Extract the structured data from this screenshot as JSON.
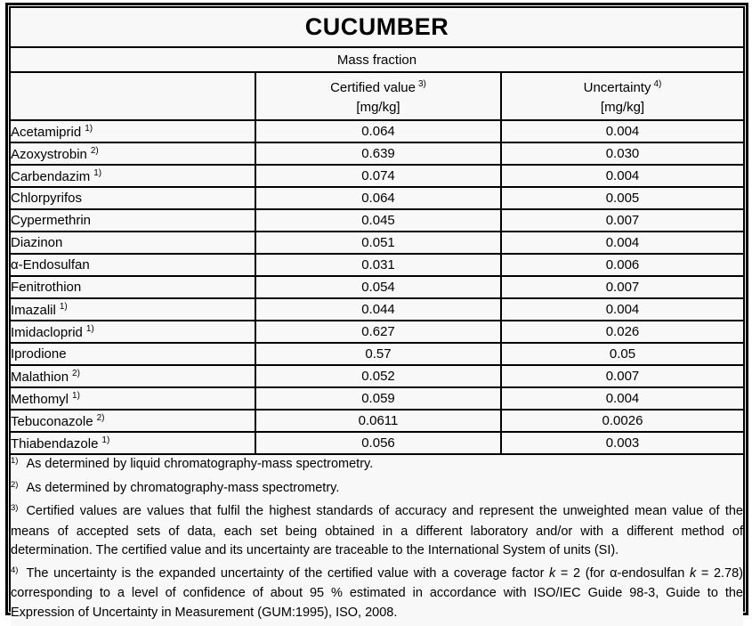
{
  "table": {
    "title": "CUCUMBER",
    "subtitle": "Mass fraction",
    "columns": {
      "analyte": {
        "label": ""
      },
      "certified": {
        "label": "Certified value",
        "sup": "3)",
        "unit": "[mg/kg]"
      },
      "uncertainty": {
        "label": "Uncertainty",
        "sup": "4)",
        "unit": "[mg/kg]"
      }
    },
    "rows": [
      {
        "name": "Acetamiprid",
        "sup": "1)",
        "value": "0.064",
        "uncertainty": "0.004"
      },
      {
        "name": "Azoxystrobin",
        "sup": "2)",
        "value": "0.639",
        "uncertainty": "0.030"
      },
      {
        "name": "Carbendazim",
        "sup": "1)",
        "value": "0.074",
        "uncertainty": "0.004"
      },
      {
        "name": "Chlorpyrifos",
        "sup": "",
        "value": "0.064",
        "uncertainty": "0.005"
      },
      {
        "name": "Cypermethrin",
        "sup": "",
        "value": "0.045",
        "uncertainty": "0.007"
      },
      {
        "name": "Diazinon",
        "sup": "",
        "value": "0.051",
        "uncertainty": "0.004"
      },
      {
        "name": "α-Endosulfan",
        "sup": "",
        "value": "0.031",
        "uncertainty": "0.006"
      },
      {
        "name": "Fenitrothion",
        "sup": "",
        "value": "0.054",
        "uncertainty": "0.007"
      },
      {
        "name": "Imazalil",
        "sup": "1)",
        "value": "0.044",
        "uncertainty": "0.004"
      },
      {
        "name": "Imidacloprid",
        "sup": "1)",
        "value": "0.627",
        "uncertainty": "0.026"
      },
      {
        "name": "Iprodione",
        "sup": "",
        "value": "0.57",
        "uncertainty": "0.05"
      },
      {
        "name": "Malathion",
        "sup": "2)",
        "value": "0.052",
        "uncertainty": "0.007"
      },
      {
        "name": "Methomyl",
        "sup": "1)",
        "value": "0.059",
        "uncertainty": "0.004"
      },
      {
        "name": "Tebuconazole",
        "sup": "2)",
        "value": "0.0611",
        "uncertainty": "0.0026"
      },
      {
        "name": "Thiabendazole",
        "sup": "1)",
        "value": "0.056",
        "uncertainty": "0.003"
      }
    ]
  },
  "footnotes": [
    {
      "sup": "1)",
      "segments": [
        {
          "text": "As determined by liquid chromatography-mass spectrometry."
        }
      ]
    },
    {
      "sup": "2)",
      "segments": [
        {
          "text": "As determined by chromatography-mass spectrometry."
        }
      ]
    },
    {
      "sup": "3)",
      "segments": [
        {
          "text": "Certified values are values that fulfil the highest standards of accuracy and represent the unweighted mean value of the means of accepted sets of data, each set being obtained in a different laboratory and/or with a different method of determination. The certified value and its uncertainty are traceable to the International System of units (SI)."
        }
      ]
    },
    {
      "sup": "4)",
      "segments": [
        {
          "text": "The uncertainty is the expanded uncertainty of the certified value with a coverage factor "
        },
        {
          "text": "k",
          "italic": true
        },
        {
          "text": " = 2 (for α-endosulfan "
        },
        {
          "text": "k",
          "italic": true
        },
        {
          "text": " = 2.78) corresponding to a level of confidence of about 95 % estimated in accordance with ISO/IEC Guide 98-3, Guide to the Expression of Uncertainty in Measurement (GUM:1995), ISO, 2008."
        }
      ]
    }
  ],
  "colors": {
    "background": "#f8f8f8",
    "border": "#000000",
    "text": "#000000"
  }
}
